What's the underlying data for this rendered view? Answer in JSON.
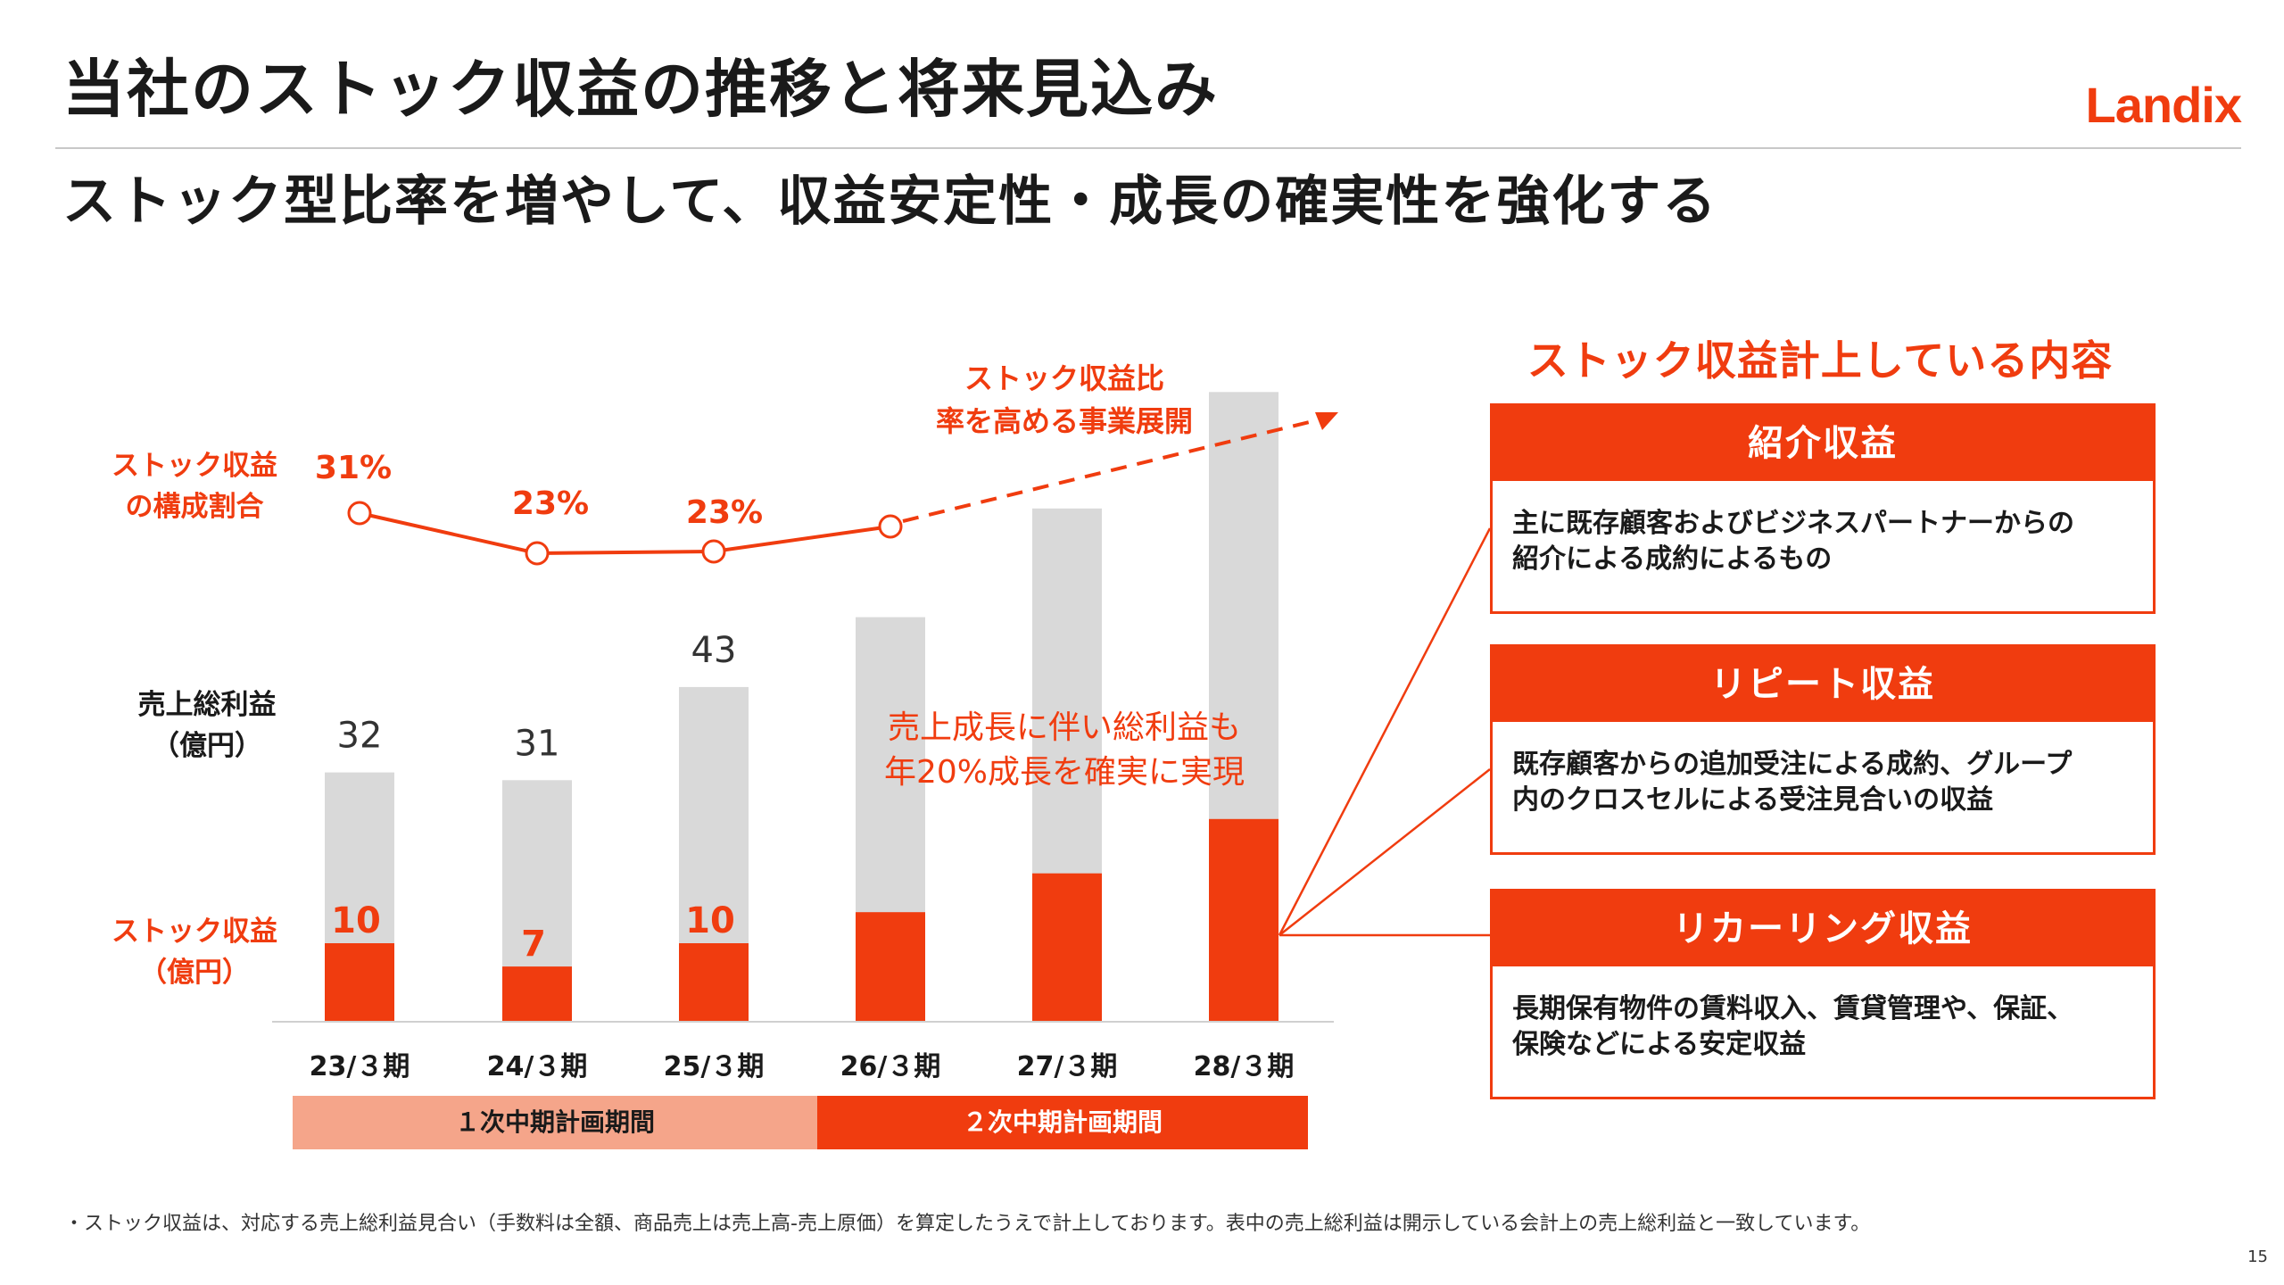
{
  "header": {
    "title": "当社のストック収益の推移と将来見込み",
    "logo_text": "Landix",
    "subtitle": "ストック型比率を増やして、収益安定性・成長の確実性を強化する"
  },
  "colors": {
    "accent": "#f03c0f",
    "bar_gray": "#d9d9d9",
    "light_band": "#f5a58a"
  },
  "chart_data": {
    "type": "bar",
    "categories": [
      "23/３期",
      "24/３期",
      "25/３期",
      "26/３期",
      "27/３期",
      "28/３期"
    ],
    "series": [
      {
        "name": "売上総利益（億円）",
        "values": [
          32,
          31,
          43,
          52,
          66,
          81
        ],
        "labels": [
          "32",
          "31",
          "43",
          "",
          "",
          ""
        ]
      },
      {
        "name": "ストック収益（億円）",
        "values": [
          10,
          7,
          10,
          14,
          19,
          26
        ],
        "labels": [
          "10",
          "7",
          "10",
          "",
          "",
          ""
        ]
      }
    ],
    "ratio_line": {
      "name": "ストック収益の構成割合",
      "values": [
        31,
        23,
        23,
        23
      ],
      "labels": [
        "31%",
        "23%",
        "23%",
        ""
      ],
      "projection_label": "ストック収益比率を高める事業展開"
    },
    "row_labels": {
      "ratio": [
        "ストック収益",
        "の構成割合"
      ],
      "gross": [
        "売上総利益",
        "（億円）"
      ],
      "stock": [
        "ストック収益",
        "（億円）"
      ]
    },
    "annotation": [
      "売上成長に伴い総利益も",
      "年20%成長を確実に実現"
    ],
    "periods": [
      {
        "label": "１次中期計画期間"
      },
      {
        "label": "２次中期計画期間"
      }
    ],
    "ylim": [
      0,
      82
    ]
  },
  "panel": {
    "heading": "ストック収益計上している内容",
    "cards": [
      {
        "title": "紹介収益",
        "lines": [
          "主に既存顧客およびビジネスパートナーからの",
          "紹介による成約によるもの"
        ]
      },
      {
        "title": "リピート収益",
        "lines": [
          "既存顧客からの追加受注による成約、グループ",
          "内のクロスセルによる受注見合いの収益"
        ]
      },
      {
        "title": "リカーリング収益",
        "lines": [
          "長期保有物件の賃料収入、賃貸管理や、保証、",
          "保険などによる安定収益"
        ]
      }
    ]
  },
  "footnote": "・ストック収益は、対応する売上総利益見合い（手数料は全額、商品売上は売上高-売上原価）を算定したうえで計上しております。表中の売上総利益は開示している会計上の売上総利益と一致しています。",
  "page_number": "15"
}
